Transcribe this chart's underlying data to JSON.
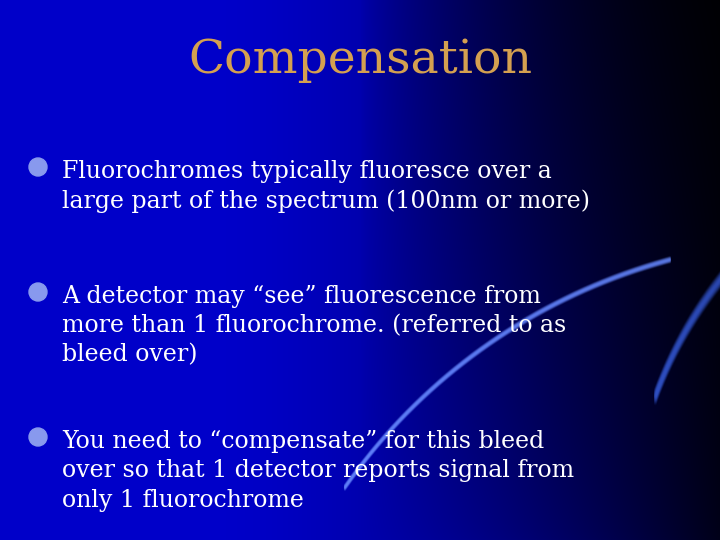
{
  "title": "Compensation",
  "title_color": "#D4A050",
  "title_fontsize": 34,
  "bg_color_main": "#0000CC",
  "bullet_color": "#8899EE",
  "text_color": "#FFFFFF",
  "bullets": [
    "Fluorochromes typically fluoresce over a\nlarge part of the spectrum (100nm or more)",
    "A detector may “see” fluorescence from\nmore than 1 fluorochrome. (referred to as\nbleed over)",
    "You need to “compensate” for this bleed\nover so that 1 detector reports signal from\nonly 1 fluorochrome"
  ],
  "bullet_fontsize": 17,
  "figsize": [
    7.2,
    5.4
  ],
  "dpi": 100,
  "swoosh1_color": "#5577FF",
  "swoosh2_color": "#2244CC",
  "dark_bg_color": "#00004A"
}
